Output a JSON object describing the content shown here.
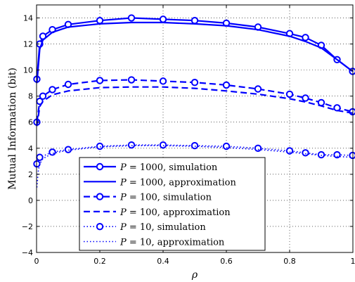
{
  "chart_data": {
    "type": "line",
    "title": "",
    "xlabel": "ρ",
    "ylabel": "Mutual Information (bit)",
    "xlim": [
      0,
      1
    ],
    "ylim": [
      -4,
      15
    ],
    "xticks": [
      0,
      0.2,
      0.4,
      0.6,
      0.8,
      1
    ],
    "xtick_labels": [
      "0",
      "0.2",
      "0.4",
      "0.6",
      "0.8",
      "1"
    ],
    "yticks": [
      -4,
      -2,
      0,
      2,
      4,
      6,
      8,
      10,
      12,
      14
    ],
    "ytick_labels": [
      "−4",
      "−2",
      "0",
      "2",
      "4",
      "6",
      "8",
      "10",
      "12",
      "14"
    ],
    "grid": true,
    "grid_style": "dotted",
    "legend_position": "bottom-center",
    "color": "#0000ff",
    "series": [
      {
        "name": "P = 1000, simulation",
        "legend_symbol": "P",
        "legend_value": "= 1000, simulation",
        "line_style": "solid",
        "marker": "circle",
        "x": [
          0.001,
          0.01,
          0.02,
          0.05,
          0.1,
          0.2,
          0.3,
          0.4,
          0.5,
          0.6,
          0.7,
          0.8,
          0.85,
          0.9,
          0.95,
          0.999
        ],
        "y": [
          9.3,
          12.0,
          12.6,
          13.1,
          13.5,
          13.8,
          14.0,
          13.9,
          13.8,
          13.6,
          13.3,
          12.8,
          12.5,
          11.9,
          10.8,
          9.9
        ]
      },
      {
        "name": "P = 1000, approximation",
        "legend_symbol": "P",
        "legend_value": "= 1000, approximation",
        "line_style": "solid",
        "marker": "none",
        "x": [
          0.001,
          0.01,
          0.02,
          0.05,
          0.1,
          0.2,
          0.3,
          0.4,
          0.5,
          0.6,
          0.7,
          0.8,
          0.85,
          0.9,
          0.95,
          0.999
        ],
        "y": [
          9.0,
          11.6,
          12.3,
          12.9,
          13.3,
          13.55,
          13.65,
          13.65,
          13.55,
          13.4,
          13.1,
          12.6,
          12.2,
          11.7,
          10.8,
          9.9
        ]
      },
      {
        "name": "P = 100, simulation",
        "legend_symbol": "P",
        "legend_value": "= 100, simulation",
        "line_style": "dashed",
        "marker": "circle",
        "x": [
          0.001,
          0.01,
          0.02,
          0.05,
          0.1,
          0.2,
          0.3,
          0.4,
          0.5,
          0.6,
          0.7,
          0.8,
          0.85,
          0.9,
          0.95,
          0.999
        ],
        "y": [
          6.0,
          7.6,
          8.0,
          8.5,
          8.9,
          9.2,
          9.25,
          9.15,
          9.05,
          8.85,
          8.55,
          8.15,
          7.85,
          7.5,
          7.1,
          6.8
        ]
      },
      {
        "name": "P = 100, approximation",
        "legend_symbol": "P",
        "legend_value": "= 100, approximation",
        "line_style": "dashed",
        "marker": "none",
        "x": [
          0.001,
          0.01,
          0.02,
          0.05,
          0.1,
          0.2,
          0.3,
          0.4,
          0.5,
          0.6,
          0.7,
          0.8,
          0.85,
          0.9,
          0.95,
          0.999
        ],
        "y": [
          5.7,
          7.2,
          7.6,
          8.1,
          8.4,
          8.65,
          8.7,
          8.7,
          8.6,
          8.4,
          8.15,
          7.8,
          7.55,
          7.25,
          6.9,
          6.7
        ]
      },
      {
        "name": "P = 10, simulation",
        "legend_symbol": "P",
        "legend_value": "= 10, simulation",
        "line_style": "dotted",
        "marker": "circle",
        "x": [
          0.001,
          0.01,
          0.05,
          0.1,
          0.2,
          0.3,
          0.4,
          0.5,
          0.6,
          0.7,
          0.8,
          0.85,
          0.9,
          0.95,
          0.999
        ],
        "y": [
          2.8,
          3.3,
          3.7,
          3.9,
          4.15,
          4.25,
          4.25,
          4.2,
          4.15,
          4.0,
          3.8,
          3.65,
          3.5,
          3.5,
          3.45
        ]
      },
      {
        "name": "P = 10, approximation",
        "legend_symbol": "P",
        "legend_value": "= 10, approximation",
        "line_style": "dotted",
        "marker": "none",
        "x": [
          0.001,
          0.005,
          0.01,
          0.02,
          0.05,
          0.1,
          0.2,
          0.3,
          0.4,
          0.5,
          0.6,
          0.7,
          0.8,
          0.9,
          0.999
        ],
        "y": [
          1.0,
          2.2,
          2.8,
          3.2,
          3.6,
          3.85,
          4.1,
          4.2,
          4.2,
          4.15,
          4.05,
          3.9,
          3.7,
          3.45,
          3.3
        ]
      }
    ]
  }
}
